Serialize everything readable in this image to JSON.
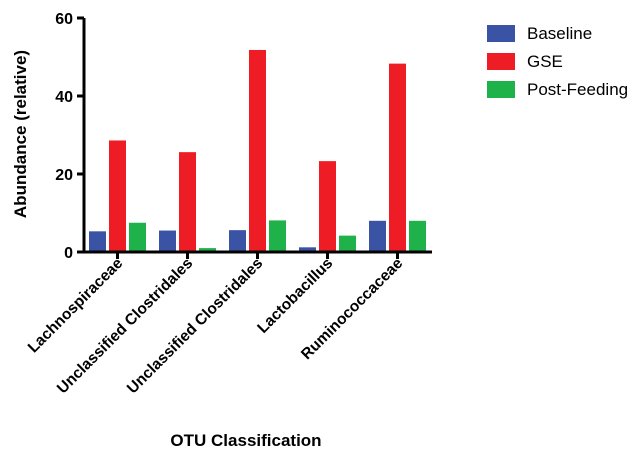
{
  "chart_data": {
    "type": "bar",
    "categories": [
      "Lachnospiraceae",
      "Unclassified Clostridales",
      "Unclassified Clostridales",
      "Lactobacillus",
      "Ruminococcaceae"
    ],
    "series": [
      {
        "name": "Baseline",
        "color": "#3a53a4",
        "values": [
          5.3,
          5.5,
          5.6,
          1.2,
          8.0
        ]
      },
      {
        "name": "GSE",
        "color": "#ee1c24",
        "values": [
          28.6,
          25.6,
          51.8,
          23.3,
          48.3
        ]
      },
      {
        "name": "Post-Feeding",
        "color": "#20b24a",
        "values": [
          7.5,
          1.0,
          8.1,
          4.2,
          8.0
        ]
      }
    ],
    "xlabel": "OTU Classification",
    "ylabel": "Abundance (relative)",
    "ylim": [
      0,
      60
    ],
    "yticks": [
      0,
      20,
      40,
      60
    ],
    "grid": false,
    "legend": "top-right"
  }
}
